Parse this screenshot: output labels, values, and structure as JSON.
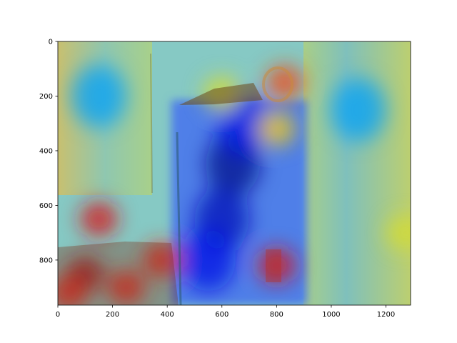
{
  "chart_data": {
    "type": "heatmap",
    "title": "",
    "xlabel": "",
    "ylabel": "",
    "xlim": [
      0,
      1290
    ],
    "ylim": [
      965,
      0
    ],
    "y_inverted": true,
    "xticks": [
      {
        "value": 0,
        "label": "0"
      },
      {
        "value": 200,
        "label": "200"
      },
      {
        "value": 400,
        "label": "400"
      },
      {
        "value": 600,
        "label": "600"
      },
      {
        "value": 800,
        "label": "800"
      },
      {
        "value": 1000,
        "label": "1000"
      },
      {
        "value": 1200,
        "label": "1200"
      }
    ],
    "yticks": [
      {
        "value": 0,
        "label": "0"
      },
      {
        "value": 200,
        "label": "200"
      },
      {
        "value": 400,
        "label": "400"
      },
      {
        "value": 600,
        "label": "600"
      },
      {
        "value": 800,
        "label": "800"
      }
    ],
    "colormap": "jet",
    "overlay": "heatmap over photo of a room with curtains and a doorway",
    "background_colors": {
      "left_curtain": "#9fc7a0",
      "right_curtain": "#8fc4b0",
      "door_center": "#5b6fe0",
      "floor_left": "#a05020"
    },
    "hotspots": [
      {
        "x": 100,
        "y": 850,
        "intensity": 0.95
      },
      {
        "x": 150,
        "y": 650,
        "intensity": 0.9
      },
      {
        "x": 250,
        "y": 900,
        "intensity": 0.85
      },
      {
        "x": 380,
        "y": 800,
        "intensity": 0.85
      },
      {
        "x": 800,
        "y": 820,
        "intensity": 0.9
      },
      {
        "x": 830,
        "y": 150,
        "intensity": 0.8
      },
      {
        "x": 600,
        "y": 190,
        "intensity": 0.6
      },
      {
        "x": 800,
        "y": 320,
        "intensity": 0.65
      },
      {
        "x": 1270,
        "y": 700,
        "intensity": 0.6
      },
      {
        "x": 40,
        "y": 920,
        "intensity": 0.85
      }
    ],
    "coldspots": [
      {
        "x": 640,
        "y": 450,
        "intensity": 0.0
      },
      {
        "x": 600,
        "y": 650,
        "intensity": 0.05
      },
      {
        "x": 680,
        "y": 300,
        "intensity": 0.1
      },
      {
        "x": 550,
        "y": 800,
        "intensity": 0.1
      },
      {
        "x": 1100,
        "y": 250,
        "intensity": 0.3
      },
      {
        "x": 150,
        "y": 200,
        "intensity": 0.3
      }
    ]
  }
}
